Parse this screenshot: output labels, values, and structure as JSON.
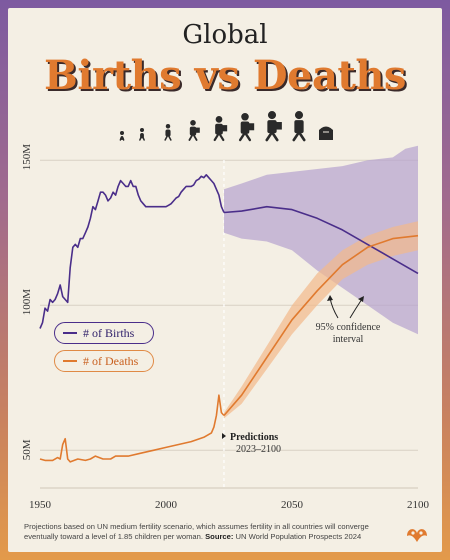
{
  "header": {
    "kicker": "Global",
    "title": "Births vs Deaths"
  },
  "legend": {
    "births": "# of Births",
    "deaths": "# of Deaths"
  },
  "annotations": {
    "prediction_title": "Predictions",
    "prediction_range": "2023–2100",
    "ci_line1": "95% confidence",
    "ci_line2": "interval"
  },
  "footnote": {
    "text": "Projections based on UN medium fertility scenario, which assumes fertility in all countries will converge eventually toward a level of 1.85 children per woman.",
    "source_label": "Source:",
    "source": "UN World Population Prospects 2024"
  },
  "icons": [
    "baby-icon",
    "toddler-icon",
    "child-icon",
    "student-icon",
    "teen-icon",
    "adult-icon",
    "worker-icon",
    "elder-icon",
    "gravestone-icon"
  ],
  "colors": {
    "births": "#4a2e8a",
    "deaths": "#e07a2f",
    "title": "#e07a2f"
  },
  "chart_data": {
    "type": "line",
    "ylim": [
      37,
      157
    ],
    "xlim": [
      1950,
      2100
    ],
    "x_ticks": [
      1950,
      2000,
      2050,
      2100
    ],
    "x_tick_labels": [
      "1950",
      "2000",
      "2050",
      "2100"
    ],
    "y_ticks": [
      50,
      100,
      150
    ],
    "y_tick_labels": [
      "50M",
      "100M",
      "150M"
    ],
    "prediction_start": 2023,
    "series": [
      {
        "name": "# of Births",
        "color": "#4a2e8a",
        "historical": [
          [
            1950,
            92
          ],
          [
            1951,
            94
          ],
          [
            1952,
            99
          ],
          [
            1953,
            98
          ],
          [
            1954,
            102
          ],
          [
            1955,
            101
          ],
          [
            1956,
            102
          ],
          [
            1957,
            104
          ],
          [
            1958,
            107
          ],
          [
            1959,
            103
          ],
          [
            1960,
            102
          ],
          [
            1961,
            101
          ],
          [
            1962,
            113
          ],
          [
            1963,
            120
          ],
          [
            1964,
            121
          ],
          [
            1965,
            120
          ],
          [
            1966,
            123
          ],
          [
            1967,
            123
          ],
          [
            1968,
            125
          ],
          [
            1969,
            127
          ],
          [
            1970,
            130
          ],
          [
            1971,
            134
          ],
          [
            1972,
            133
          ],
          [
            1973,
            136
          ],
          [
            1974,
            139
          ],
          [
            1975,
            139
          ],
          [
            1976,
            138
          ],
          [
            1977,
            136
          ],
          [
            1978,
            137
          ],
          [
            1979,
            139
          ],
          [
            1980,
            138
          ],
          [
            1981,
            141
          ],
          [
            1982,
            143
          ],
          [
            1983,
            142
          ],
          [
            1984,
            141
          ],
          [
            1985,
            141
          ],
          [
            1986,
            143
          ],
          [
            1987,
            141
          ],
          [
            1988,
            141
          ],
          [
            1989,
            138
          ],
          [
            1990,
            136
          ],
          [
            1991,
            135
          ],
          [
            1992,
            134
          ],
          [
            1993,
            134
          ],
          [
            1994,
            134
          ],
          [
            1995,
            134
          ],
          [
            1996,
            134
          ],
          [
            1997,
            134
          ],
          [
            1998,
            134
          ],
          [
            1999,
            134
          ],
          [
            2000,
            134
          ],
          [
            2001,
            134.5
          ],
          [
            2002,
            135
          ],
          [
            2003,
            136
          ],
          [
            2004,
            137
          ],
          [
            2005,
            137.5
          ],
          [
            2006,
            139
          ],
          [
            2007,
            140
          ],
          [
            2008,
            141
          ],
          [
            2009,
            141
          ],
          [
            2010,
            141
          ],
          [
            2011,
            141.5
          ],
          [
            2012,
            143
          ],
          [
            2013,
            143.5
          ],
          [
            2014,
            144.5
          ],
          [
            2015,
            144
          ],
          [
            2016,
            145
          ],
          [
            2017,
            144
          ],
          [
            2018,
            143
          ],
          [
            2019,
            142
          ],
          [
            2020,
            140
          ],
          [
            2021,
            138
          ],
          [
            2022,
            134
          ],
          [
            2023,
            132
          ]
        ],
        "projection": [
          [
            2023,
            132
          ],
          [
            2030,
            132.5
          ],
          [
            2040,
            134
          ],
          [
            2050,
            133
          ],
          [
            2060,
            130
          ],
          [
            2070,
            126
          ],
          [
            2080,
            121
          ],
          [
            2090,
            116
          ],
          [
            2100,
            111
          ]
        ],
        "ci_upper": [
          [
            2023,
            140
          ],
          [
            2030,
            142
          ],
          [
            2040,
            145
          ],
          [
            2050,
            146
          ],
          [
            2060,
            147
          ],
          [
            2070,
            148
          ],
          [
            2080,
            150
          ],
          [
            2090,
            151
          ],
          [
            2095,
            154
          ],
          [
            2100,
            155
          ]
        ],
        "ci_lower": [
          [
            2023,
            125
          ],
          [
            2030,
            123
          ],
          [
            2040,
            122
          ],
          [
            2050,
            119
          ],
          [
            2060,
            112
          ],
          [
            2070,
            106
          ],
          [
            2080,
            100
          ],
          [
            2090,
            94
          ],
          [
            2100,
            90
          ]
        ]
      },
      {
        "name": "# of Deaths",
        "color": "#e07a2f",
        "historical": [
          [
            1950,
            47
          ],
          [
            1952,
            46.5
          ],
          [
            1955,
            46.5
          ],
          [
            1957,
            47.5
          ],
          [
            1958,
            47
          ],
          [
            1959,
            52
          ],
          [
            1960,
            54
          ],
          [
            1961,
            47
          ],
          [
            1962,
            46
          ],
          [
            1965,
            47
          ],
          [
            1968,
            46.5
          ],
          [
            1970,
            47
          ],
          [
            1972,
            48
          ],
          [
            1975,
            47
          ],
          [
            1978,
            47
          ],
          [
            1980,
            48
          ],
          [
            1985,
            48
          ],
          [
            1990,
            49
          ],
          [
            1995,
            50
          ],
          [
            2000,
            51
          ],
          [
            2005,
            52
          ],
          [
            2010,
            53
          ],
          [
            2015,
            54.5
          ],
          [
            2018,
            56
          ],
          [
            2019,
            58
          ],
          [
            2020,
            62
          ],
          [
            2021,
            69
          ],
          [
            2022,
            63
          ],
          [
            2023,
            62
          ]
        ],
        "projection": [
          [
            2023,
            62
          ],
          [
            2030,
            69
          ],
          [
            2040,
            82
          ],
          [
            2050,
            95
          ],
          [
            2060,
            105
          ],
          [
            2070,
            114
          ],
          [
            2080,
            120
          ],
          [
            2090,
            123
          ],
          [
            2100,
            124
          ]
        ],
        "ci_upper": [
          [
            2023,
            63
          ],
          [
            2030,
            72
          ],
          [
            2040,
            86
          ],
          [
            2050,
            100
          ],
          [
            2060,
            111
          ],
          [
            2070,
            119
          ],
          [
            2080,
            124
          ],
          [
            2090,
            127
          ],
          [
            2100,
            129
          ]
        ],
        "ci_lower": [
          [
            2023,
            61
          ],
          [
            2030,
            66
          ],
          [
            2040,
            78
          ],
          [
            2050,
            90
          ],
          [
            2060,
            100
          ],
          [
            2070,
            109
          ],
          [
            2080,
            114
          ],
          [
            2090,
            117
          ],
          [
            2100,
            119
          ]
        ]
      }
    ]
  }
}
